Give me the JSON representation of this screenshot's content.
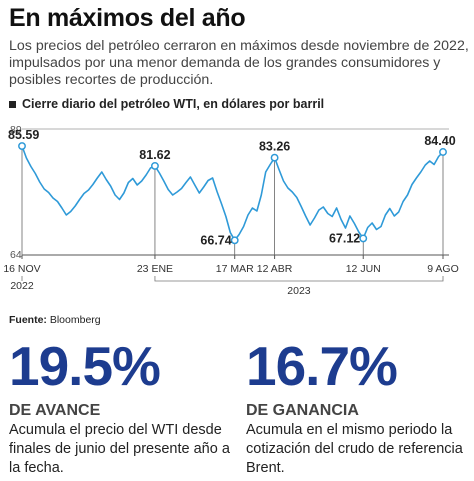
{
  "header": {
    "title": "En máximos del año",
    "subtitle": "Los precios del petróleo cerraron en máximos desde noviembre de 2022, impulsados por una menor demanda de los grandes consumidores y posibles recortes de producción."
  },
  "chart_label": "Cierre diario del petróleo WTI, en dólares por barril",
  "source": {
    "prefix": "Fuente:",
    "name": "Bloomberg"
  },
  "colors": {
    "line": "#2f9ad8",
    "accent": "#1d3c8f",
    "axis": "#999999"
  },
  "chart_data": {
    "type": "line",
    "title": "Cierre diario del petróleo WTI, en dólares por barril",
    "ylim": [
      64,
      89
    ],
    "y_ticks": [
      "89",
      "64"
    ],
    "x_ticks": [
      "16 NOV",
      "23 ENE",
      "17 MAR",
      "12 ABR",
      "12 JUN",
      "9 AGO"
    ],
    "year_labels": [
      "2022",
      "2023"
    ],
    "annotations": [
      {
        "date": "16 NOV",
        "label": "85.59",
        "value": 85.59
      },
      {
        "date": "23 ENE",
        "label": "81.62",
        "value": 81.62
      },
      {
        "date": "17 MAR",
        "label": "66.74",
        "value": 66.74
      },
      {
        "date": "12 ABR",
        "label": "83.26",
        "value": 83.26
      },
      {
        "date": "12 JUN",
        "label": "67.12",
        "value": 67.12
      },
      {
        "date": "9 AGO",
        "label": "84.40",
        "value": 84.4
      }
    ],
    "series": [
      {
        "values": [
          85.59,
          83.2,
          81.5,
          80.1,
          78.4,
          77.0,
          76.3,
          75.2,
          74.5,
          73.2,
          71.8,
          72.5,
          73.6,
          74.9,
          76.1,
          76.8,
          77.9,
          79.2,
          80.4,
          78.9,
          77.6,
          75.8,
          74.9,
          76.2,
          78.3,
          79.1,
          77.8,
          78.6,
          79.8,
          81.2,
          81.62,
          80.2,
          78.6,
          76.9,
          75.8,
          76.4,
          77.1,
          78.3,
          79.4,
          77.8,
          76.2,
          77.4,
          78.7,
          79.2,
          76.5,
          74.1,
          71.5,
          68.3,
          66.74,
          67.9,
          69.5,
          71.8,
          73.2,
          72.6,
          75.8,
          80.4,
          81.9,
          83.26,
          80.9,
          78.6,
          77.2,
          76.4,
          75.3,
          73.5,
          71.6,
          69.8,
          71.2,
          72.8,
          73.4,
          72.1,
          71.5,
          73.2,
          70.9,
          69.2,
          71.6,
          70.1,
          68.4,
          67.12,
          69.3,
          70.2,
          68.9,
          69.5,
          71.8,
          73.1,
          71.6,
          72.4,
          74.5,
          75.8,
          77.9,
          79.2,
          80.4,
          81.8,
          82.6,
          81.9,
          83.5,
          84.4
        ]
      }
    ]
  },
  "stats": [
    {
      "value": "19.5%",
      "heading": "DE AVANCE",
      "description": "Acumula el precio del WTI desde finales de junio del presente año a la fecha."
    },
    {
      "value": "16.7%",
      "heading": "DE GANANCIA",
      "description": "Acumula en el mismo periodo la cotización del crudo de referencia Brent."
    }
  ]
}
